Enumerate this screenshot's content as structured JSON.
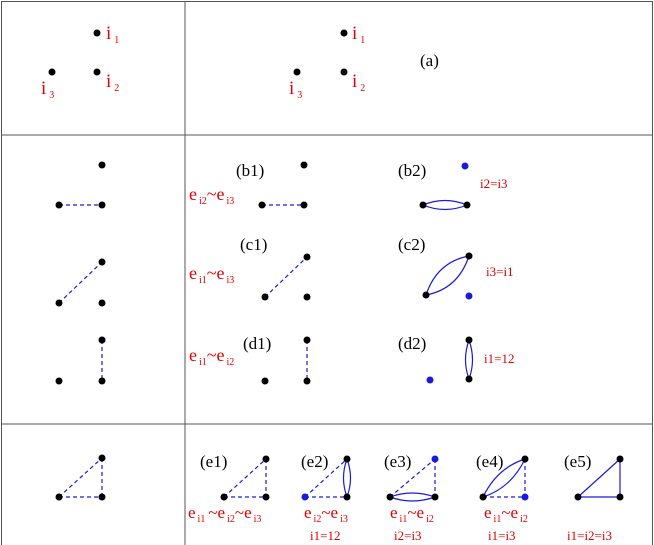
{
  "colors": {
    "red": "#e00000",
    "blue": "#1a1adc",
    "black": "#000000",
    "grid": "#555555"
  },
  "row_a": {
    "label": "(a)",
    "i1": "i",
    "i1_sub": "1",
    "i2": "i",
    "i2_sub": "2",
    "i3": "i",
    "i3_sub": "3"
  },
  "row_b": {
    "b1_label": "(b1)",
    "b2_label": "(b2)",
    "equiv_e1": "e",
    "equiv_e1_sub": "i2",
    "equiv_tilde": "~",
    "equiv_e2": "e",
    "equiv_e2_sub": "i3",
    "identity": "i2=i3"
  },
  "row_c": {
    "c1_label": "(c1)",
    "c2_label": "(c2)",
    "equiv_e1": "e",
    "equiv_e1_sub": "i1",
    "equiv_tilde": "~",
    "equiv_e2": "e",
    "equiv_e2_sub": "i3",
    "identity": "i3=i1"
  },
  "row_d": {
    "d1_label": "(d1)",
    "d2_label": "(d2)",
    "equiv_e1": "e",
    "equiv_e1_sub": "i1",
    "equiv_tilde": "~",
    "equiv_e2": "e",
    "equiv_e2_sub": "i2",
    "identity": "i1=12"
  },
  "row_e": {
    "e1_label": "(e1)",
    "e2_label": "(e2)",
    "e3_label": "(e3)",
    "e4_label": "(e4)",
    "e5_label": "(e5)",
    "e1_eq": {
      "a": "e",
      "a_sub": "i1",
      "t1": "~",
      "b": "e",
      "b_sub": "i2",
      "t2": "~",
      "c": "e",
      "c_sub": "i3"
    },
    "e2_eq": {
      "a": "e",
      "a_sub": "i2",
      "t": "~",
      "b": "e",
      "b_sub": "i3"
    },
    "e3_eq": {
      "a": "e",
      "a_sub": "i1",
      "t": "~",
      "b": "e",
      "b_sub": "i2"
    },
    "e4_eq": {
      "a": "e",
      "a_sub": "i1",
      "t": "~",
      "b": "e",
      "b_sub": "i2"
    },
    "e2_identity": "i1=12",
    "e3_identity": "i2=i3",
    "e4_identity": "i1=i3",
    "e5_identity": "i1=i2=i3"
  }
}
